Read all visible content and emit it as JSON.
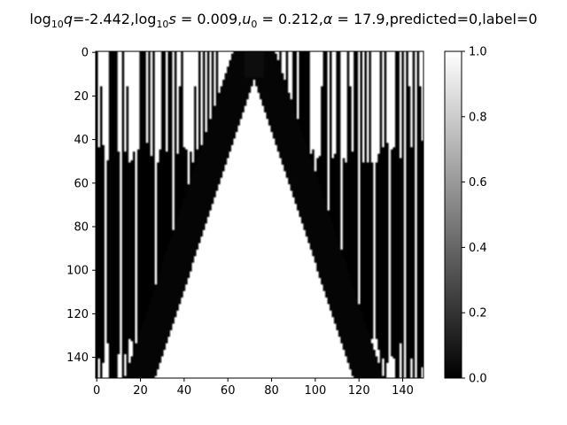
{
  "chart_data": {
    "type": "heatmap",
    "colormap": "gray",
    "title_parts": {
      "log_q_label": "log",
      "log_q_sub": "10",
      "log_q_var": "q",
      "log_q_value": "=-2.442,",
      "log_s_label": "log",
      "log_s_sub": "10",
      "log_s_var": "s",
      "log_s_value": " = 0.009,",
      "u0_var": "u",
      "u0_sub": "0",
      "u0_value": " = 0.212,",
      "alpha_var": "α",
      "alpha_value": " = 17.9,",
      "tail": "predicted=0,label=0"
    },
    "x_range": [
      0,
      150
    ],
    "y_range": [
      0,
      150
    ],
    "y_inverted": true,
    "x_ticks": [
      "0",
      "20",
      "40",
      "60",
      "80",
      "100",
      "120",
      "140"
    ],
    "y_ticks": [
      "0",
      "20",
      "40",
      "60",
      "80",
      "100",
      "120",
      "140"
    ],
    "colorbar": {
      "range": [
        0.0,
        1.0
      ],
      "ticks": [
        "0.0",
        "0.2",
        "0.4",
        "0.6",
        "0.8",
        "1.0"
      ]
    },
    "pattern": {
      "description_free": true,
      "columns": 150,
      "rows": 150,
      "bright_core_center_x": 72,
      "dark_band_rows": [
        60,
        120
      ],
      "bright_columns": [
        4,
        11,
        18,
        27,
        35,
        42,
        52,
        59,
        66,
        73,
        79,
        85,
        92,
        100,
        106,
        112,
        120,
        127,
        134,
        141,
        146
      ],
      "dark_columns": [
        2,
        8,
        14,
        22,
        31,
        38,
        45,
        95,
        103,
        110,
        116,
        123,
        130,
        137,
        143,
        148
      ]
    }
  }
}
